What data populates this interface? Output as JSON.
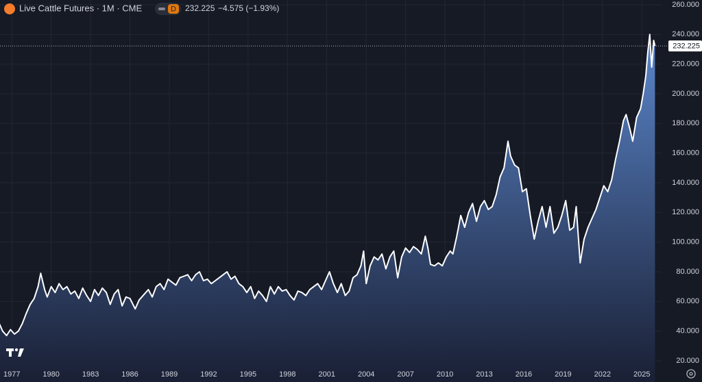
{
  "chart_data": {
    "type": "area",
    "title": "Live Cattle Futures · 1M · CME",
    "badge": "D",
    "last": 232.225,
    "change": "−4.575 (−1.93%)",
    "color": "#ffffff",
    "area_color": "#5f8dd6",
    "grid": true,
    "xlim": [
      1976.1,
      2026.5
    ],
    "ylim": [
      20,
      260
    ],
    "xticks": [
      1977,
      1980,
      1983,
      1986,
      1989,
      1992,
      1995,
      1998,
      2001,
      2004,
      2007,
      2010,
      2013,
      2016,
      2019,
      2022,
      2025
    ],
    "yticks": [
      {
        "value": 20,
        "label": "20.000"
      },
      {
        "value": 40,
        "label": "40.000"
      },
      {
        "value": 60,
        "label": "60.000"
      },
      {
        "value": 80,
        "label": "80.000"
      },
      {
        "value": 100,
        "label": "100.000"
      },
      {
        "value": 120,
        "label": "120.000"
      },
      {
        "value": 140,
        "label": "140.000"
      },
      {
        "value": 160,
        "label": "160.000"
      },
      {
        "value": 180,
        "label": "180.000"
      },
      {
        "value": 200,
        "label": "200.000"
      },
      {
        "value": 220,
        "label": "220.000"
      },
      {
        "value": 240,
        "label": "240.000"
      },
      {
        "value": 260,
        "label": "260.000"
      }
    ],
    "x": [
      1976.0,
      1976.3,
      1976.6,
      1976.9,
      1977.2,
      1977.5,
      1977.8,
      1978.1,
      1978.4,
      1978.7,
      1979.0,
      1979.2,
      1979.5,
      1979.7,
      1980.0,
      1980.3,
      1980.6,
      1980.9,
      1981.2,
      1981.5,
      1981.8,
      1982.1,
      1982.4,
      1982.7,
      1983.0,
      1983.3,
      1983.6,
      1983.9,
      1984.2,
      1984.5,
      1984.8,
      1985.1,
      1985.4,
      1985.7,
      1986.0,
      1986.4,
      1986.7,
      1987.0,
      1987.4,
      1987.7,
      1988.0,
      1988.3,
      1988.6,
      1988.9,
      1989.2,
      1989.5,
      1989.8,
      1990.1,
      1990.4,
      1990.7,
      1991.0,
      1991.3,
      1991.6,
      1991.9,
      1992.2,
      1992.5,
      1992.8,
      1993.1,
      1993.4,
      1993.7,
      1994.0,
      1994.3,
      1994.6,
      1994.9,
      1995.2,
      1995.5,
      1995.8,
      1996.1,
      1996.4,
      1996.7,
      1997.0,
      1997.3,
      1997.6,
      1997.9,
      1998.2,
      1998.5,
      1998.8,
      1999.1,
      1999.4,
      1999.7,
      2000.0,
      2000.3,
      2000.6,
      2000.9,
      2001.2,
      2001.5,
      2001.8,
      2002.1,
      2002.4,
      2002.7,
      2003.0,
      2003.3,
      2003.6,
      2003.8,
      2004.0,
      2004.3,
      2004.6,
      2004.9,
      2005.2,
      2005.5,
      2005.8,
      2006.1,
      2006.4,
      2006.7,
      2007.0,
      2007.3,
      2007.6,
      2007.9,
      2008.2,
      2008.5,
      2008.7,
      2008.9,
      2009.2,
      2009.5,
      2009.8,
      2010.1,
      2010.4,
      2010.6,
      2010.9,
      2011.2,
      2011.5,
      2011.8,
      2012.1,
      2012.4,
      2012.7,
      2013.0,
      2013.3,
      2013.6,
      2013.9,
      2014.2,
      2014.5,
      2014.8,
      2015.0,
      2015.3,
      2015.6,
      2015.9,
      2016.2,
      2016.5,
      2016.8,
      2017.1,
      2017.4,
      2017.7,
      2018.0,
      2018.3,
      2018.6,
      2018.9,
      2019.2,
      2019.5,
      2019.8,
      2020.0,
      2020.3,
      2020.6,
      2020.9,
      2021.2,
      2021.5,
      2021.8,
      2022.1,
      2022.4,
      2022.7,
      2023.0,
      2023.3,
      2023.6,
      2023.8,
      2024.1,
      2024.3,
      2024.6,
      2024.9,
      2025.1,
      2025.3,
      2025.45,
      2025.6,
      2025.75,
      2025.9,
      2026.0
    ],
    "values": [
      46,
      40,
      37,
      41,
      38,
      40,
      45,
      52,
      58,
      62,
      70,
      79,
      68,
      63,
      70,
      66,
      72,
      68,
      70,
      65,
      67,
      62,
      69,
      64,
      60,
      68,
      64,
      69,
      66,
      58,
      65,
      68,
      57,
      63,
      62,
      55,
      61,
      64,
      68,
      63,
      70,
      72,
      68,
      75,
      73,
      71,
      76,
      77,
      78,
      74,
      78,
      80,
      74,
      75,
      72,
      74,
      76,
      78,
      80,
      75,
      77,
      72,
      70,
      66,
      70,
      62,
      67,
      64,
      60,
      70,
      65,
      70,
      67,
      68,
      64,
      61,
      67,
      66,
      64,
      68,
      70,
      72,
      68,
      74,
      80,
      72,
      66,
      72,
      64,
      67,
      76,
      78,
      84,
      94,
      72,
      84,
      90,
      88,
      92,
      82,
      90,
      94,
      76,
      90,
      96,
      93,
      97,
      95,
      92,
      104,
      96,
      85,
      84,
      86,
      84,
      90,
      94,
      92,
      104,
      118,
      110,
      120,
      126,
      114,
      124,
      128,
      122,
      124,
      132,
      144,
      150,
      168,
      158,
      152,
      150,
      134,
      136,
      118,
      102,
      114,
      124,
      110,
      124,
      106,
      110,
      118,
      128,
      108,
      110,
      124,
      86,
      102,
      110,
      116,
      122,
      130,
      138,
      134,
      142,
      156,
      168,
      182,
      186,
      176,
      168,
      184,
      190,
      200,
      212,
      228,
      240,
      218,
      236,
      232.225
    ]
  }
}
